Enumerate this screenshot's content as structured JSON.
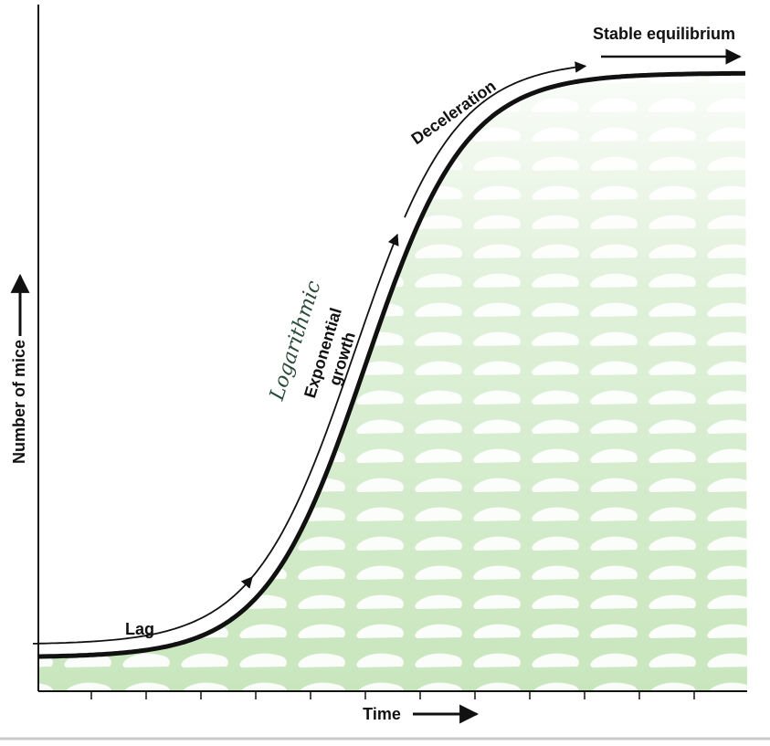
{
  "axes": {
    "y_label": "Number of mice",
    "x_label": "Time"
  },
  "phases": {
    "lag": "Lag",
    "exponential_growth": [
      "Exponential",
      "growth"
    ],
    "deceleration": "Deceleration",
    "stable": "Stable equilibrium"
  },
  "annotation": "Logarithmic"
}
